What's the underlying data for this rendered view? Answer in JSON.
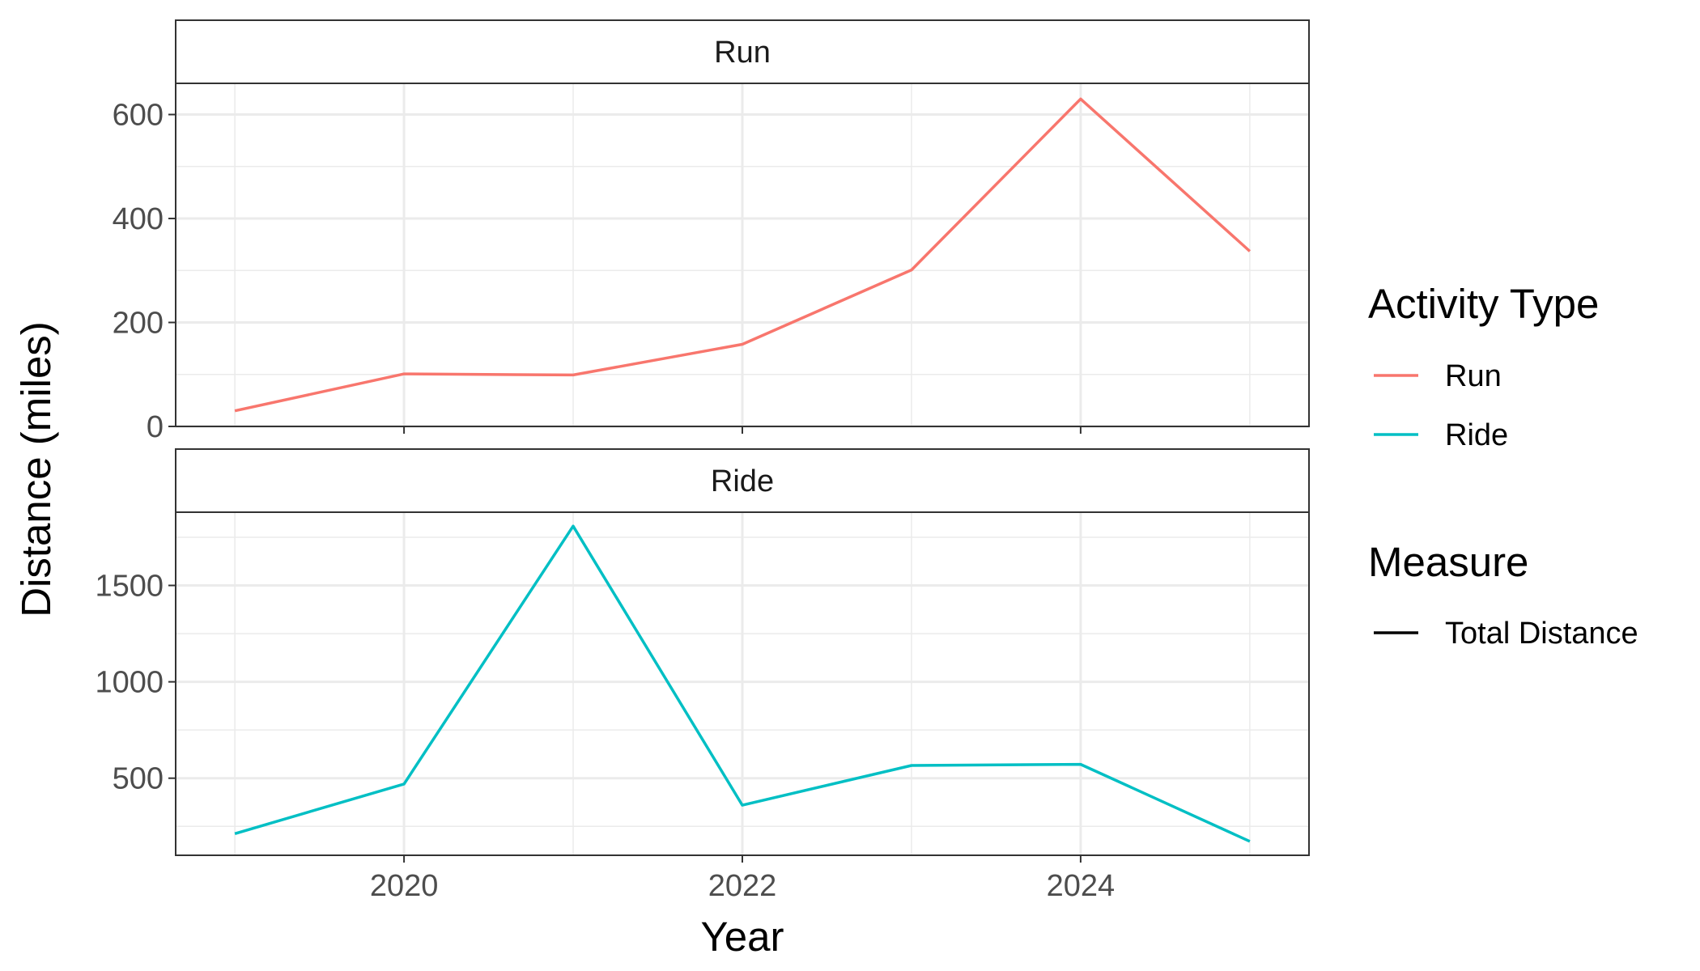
{
  "chart_data": {
    "type": "line",
    "xlabel": "Year",
    "ylabel": "Distance (miles)",
    "x": [
      2019,
      2020,
      2021,
      2022,
      2023,
      2024,
      2025
    ],
    "x_ticks": [
      2020,
      2022,
      2024
    ],
    "x_tick_labels": [
      "2020",
      "2022",
      "2024"
    ],
    "xlim": [
      2018.65,
      2025.35
    ],
    "panels": [
      {
        "strip": "Run",
        "series": "Run",
        "color": "#F8766D",
        "values": [
          30,
          101,
          99,
          158,
          301,
          630,
          337
        ],
        "ylim": [
          0,
          660
        ],
        "y_ticks": [
          0,
          200,
          400,
          600
        ],
        "y_tick_labels": [
          "0",
          "200",
          "400",
          "600"
        ],
        "y_minor": [
          100,
          300,
          500
        ]
      },
      {
        "strip": "Ride",
        "series": "Ride",
        "color": "#00BFC4",
        "values": [
          212,
          470,
          1808,
          360,
          566,
          572,
          172
        ],
        "ylim": [
          100,
          1880
        ],
        "y_ticks": [
          500,
          1000,
          1500
        ],
        "y_tick_labels": [
          "500",
          "1000",
          "1500"
        ],
        "y_minor": [
          250,
          750,
          1250,
          1750
        ]
      }
    ],
    "legend": {
      "placement": "right",
      "groups": [
        {
          "title": "Activity Type",
          "items": [
            {
              "label": "Run",
              "color": "#F8766D"
            },
            {
              "label": "Ride",
              "color": "#00BFC4"
            }
          ]
        },
        {
          "title": "Measure",
          "items": [
            {
              "label": "Total Distance",
              "color": "#000000"
            }
          ]
        }
      ]
    },
    "grid": true,
    "theme": "bw"
  }
}
